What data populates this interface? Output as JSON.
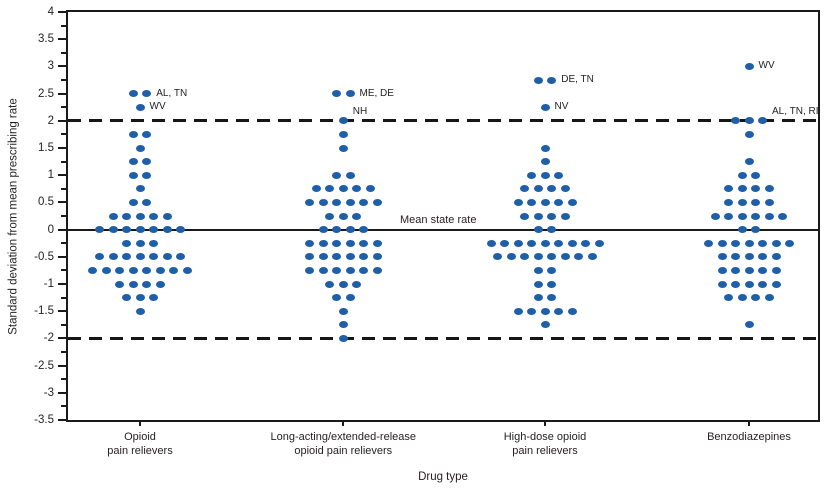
{
  "chart_data": {
    "type": "scatter",
    "subtype": "stacked-dot-plot",
    "title": "",
    "ylabel": "Standard deviation from mean prescribing rate",
    "xlabel": "Drug type",
    "ylim": [
      -3.5,
      4
    ],
    "y_tick_labels": [
      "4",
      "3.5",
      "3",
      "2.5",
      "2",
      "1.5",
      "1",
      "0.5",
      "0",
      "-0.5",
      "-1",
      "-1.5",
      "-2",
      "-2.5",
      "-3",
      "-3.5"
    ],
    "y_minor_step": 0.25,
    "grid": false,
    "legend": "none",
    "dot_color": "#1f5fa8",
    "mean_line": {
      "value": 0,
      "label": "Mean state rate"
    },
    "control_limits": {
      "upper": 2,
      "lower": -2
    },
    "categories": [
      "Opioid pain relievers",
      "Long-acting/extended-release opioid pain relievers",
      "High-dose opioid pain relievers",
      "Benzodiazepines"
    ],
    "groups": [
      {
        "category": "Opioid pain relievers",
        "label_lines": [
          "Opioid",
          "pain relievers"
        ],
        "x_center_frac": 0.096,
        "stacks": [
          {
            "v": 2.5,
            "n": 2
          },
          {
            "v": 2.25,
            "n": 1
          },
          {
            "v": 1.75,
            "n": 2
          },
          {
            "v": 1.5,
            "n": 1
          },
          {
            "v": 1.25,
            "n": 2
          },
          {
            "v": 1,
            "n": 2
          },
          {
            "v": 0.75,
            "n": 1
          },
          {
            "v": 0.5,
            "n": 2
          },
          {
            "v": 0.25,
            "n": 5
          },
          {
            "v": 0,
            "n": 7
          },
          {
            "v": -0.25,
            "n": 3
          },
          {
            "v": -0.5,
            "n": 7
          },
          {
            "v": -0.75,
            "n": 8
          },
          {
            "v": -1,
            "n": 4
          },
          {
            "v": -1.25,
            "n": 3
          },
          {
            "v": -1.5,
            "n": 1
          }
        ],
        "annotations": [
          {
            "v": 2.5,
            "text": "AL, TN"
          },
          {
            "v": 2.25,
            "text": "WV"
          }
        ]
      },
      {
        "category": "Long-acting/extended-release opioid pain relievers",
        "label_lines": [
          "Long-acting/extended-release",
          "opioid pain relievers"
        ],
        "x_center_frac": 0.367,
        "stacks": [
          {
            "v": 2.5,
            "n": 2
          },
          {
            "v": 2,
            "n": 1
          },
          {
            "v": 1.75,
            "n": 1
          },
          {
            "v": 1.5,
            "n": 1
          },
          {
            "v": 1,
            "n": 2
          },
          {
            "v": 0.75,
            "n": 5
          },
          {
            "v": 0.5,
            "n": 6
          },
          {
            "v": 0.25,
            "n": 3
          },
          {
            "v": 0,
            "n": 4
          },
          {
            "v": -0.25,
            "n": 6
          },
          {
            "v": -0.5,
            "n": 6
          },
          {
            "v": -0.75,
            "n": 6
          },
          {
            "v": -1,
            "n": 3
          },
          {
            "v": -1.25,
            "n": 2
          },
          {
            "v": -1.5,
            "n": 1
          },
          {
            "v": -1.75,
            "n": 1
          },
          {
            "v": -2,
            "n": 1
          }
        ],
        "annotations": [
          {
            "v": 2.5,
            "text": "ME, DE"
          },
          {
            "v": 2,
            "text": "NH"
          }
        ]
      },
      {
        "category": "High-dose opioid pain relievers",
        "label_lines": [
          "High-dose opioid",
          "pain relievers"
        ],
        "x_center_frac": 0.636,
        "stacks": [
          {
            "v": 2.75,
            "n": 2
          },
          {
            "v": 2.25,
            "n": 1
          },
          {
            "v": 1.5,
            "n": 1
          },
          {
            "v": 1.25,
            "n": 1
          },
          {
            "v": 1,
            "n": 3
          },
          {
            "v": 0.75,
            "n": 4
          },
          {
            "v": 0.5,
            "n": 5
          },
          {
            "v": 0.25,
            "n": 4
          },
          {
            "v": 0,
            "n": 2
          },
          {
            "v": -0.25,
            "n": 9
          },
          {
            "v": -0.5,
            "n": 8
          },
          {
            "v": -0.75,
            "n": 2
          },
          {
            "v": -1,
            "n": 2
          },
          {
            "v": -1.25,
            "n": 2
          },
          {
            "v": -1.5,
            "n": 5
          },
          {
            "v": -1.75,
            "n": 1
          }
        ],
        "annotations": [
          {
            "v": 2.75,
            "text": "DE, TN"
          },
          {
            "v": 2.25,
            "text": "NV"
          }
        ]
      },
      {
        "category": "Benzodiazepines",
        "label_lines": [
          "Benzodiazepines"
        ],
        "x_center_frac": 0.908,
        "stacks": [
          {
            "v": 3,
            "n": 1
          },
          {
            "v": 2,
            "n": 3
          },
          {
            "v": 1.75,
            "n": 1
          },
          {
            "v": 1.25,
            "n": 1
          },
          {
            "v": 1,
            "n": 2
          },
          {
            "v": 0.75,
            "n": 4
          },
          {
            "v": 0.5,
            "n": 4
          },
          {
            "v": 0.25,
            "n": 6
          },
          {
            "v": 0,
            "n": 2
          },
          {
            "v": -0.25,
            "n": 7
          },
          {
            "v": -0.5,
            "n": 5
          },
          {
            "v": -0.75,
            "n": 5
          },
          {
            "v": -1,
            "n": 5
          },
          {
            "v": -1.25,
            "n": 4
          },
          {
            "v": -1.75,
            "n": 1
          }
        ],
        "annotations": [
          {
            "v": 3,
            "text": "WV"
          },
          {
            "v": 2,
            "text": "AL, TN, RI"
          }
        ]
      }
    ]
  }
}
